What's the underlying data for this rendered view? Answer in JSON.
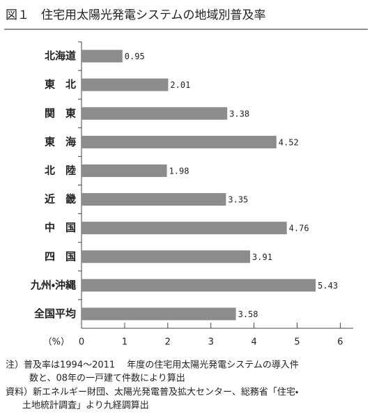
{
  "chart_data": {
    "type": "bar",
    "orientation": "horizontal",
    "title": "図１　住宅用太陽光発電システムの地域別普及率",
    "categories": [
      "北海道",
      "東　北",
      "関　東",
      "東　海",
      "北　陸",
      "近　畿",
      "中　国",
      "四　国",
      "九州・沖縄",
      "全国平均"
    ],
    "values": [
      0.95,
      2.01,
      3.38,
      4.52,
      1.98,
      3.35,
      4.76,
      3.91,
      5.43,
      3.58
    ],
    "color": "#8c8c8c",
    "xlabel": "（%）",
    "xlim": [
      0,
      6.3
    ],
    "xticks": [
      0,
      1,
      2,
      3,
      4,
      5,
      6
    ],
    "grid": false,
    "notes": [
      "注）普及率は1994～2011　 年度の住宅用太陽光発電システムの導入件",
      "数と、08年の一戸建て件数により算出"
    ],
    "source": [
      "資料）新エネルギー財団、太陽光発電普及拡大センター、総務省「住宅・",
      "土地統計調査」より九経調算出"
    ]
  }
}
